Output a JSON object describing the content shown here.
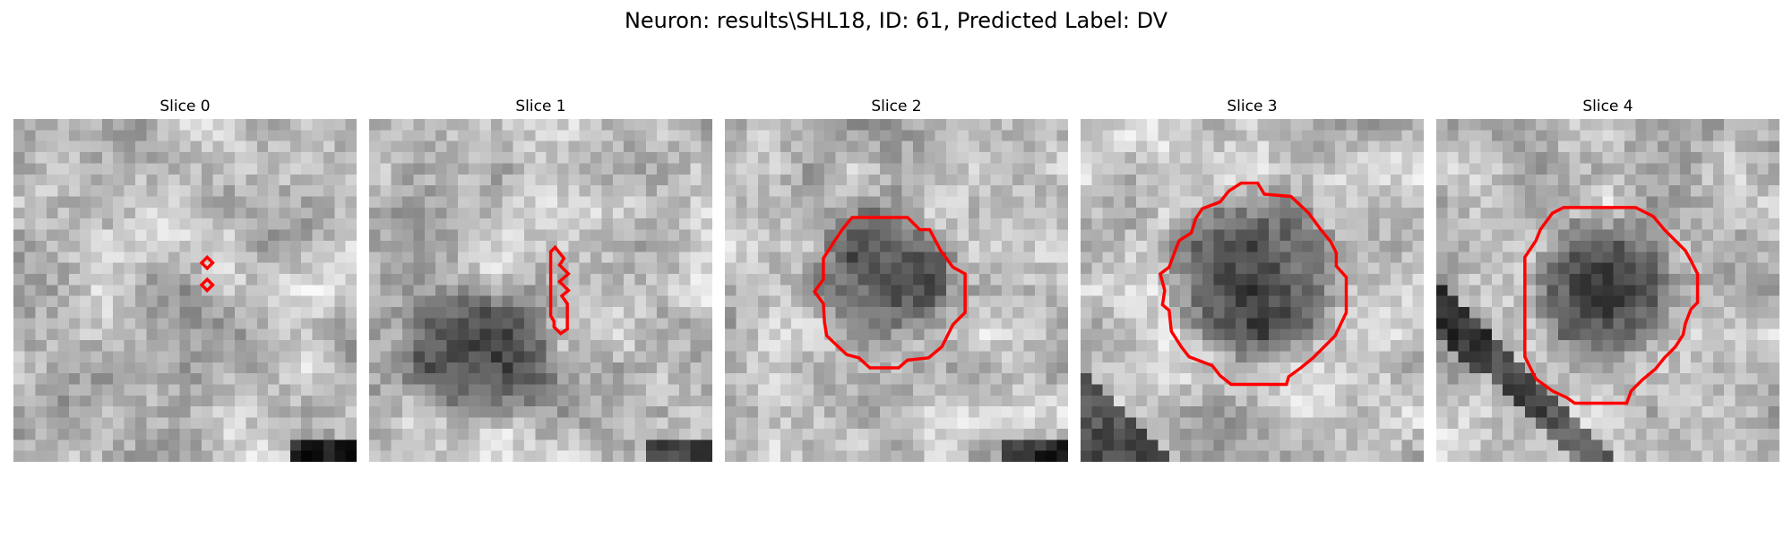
{
  "figure": {
    "title": "Neuron: results\\SHL18, ID: 61, Predicted Label: DV",
    "contour_color": "#ff0000"
  },
  "panels": [
    {
      "title": "Slice 0",
      "seed": 11,
      "blob": {
        "cx": 16.5,
        "cy": 19,
        "r": 8,
        "strength": 25
      },
      "dark_corner": "bottom-right"
    },
    {
      "title": "Slice 1",
      "seed": 23,
      "blob": {
        "cx": 10,
        "cy": 21,
        "r": 7.5,
        "strength": 110
      },
      "dark_corner": "bottom-right"
    },
    {
      "title": "Slice 2",
      "seed": 37,
      "blob": {
        "cx": 14,
        "cy": 14,
        "r": 7,
        "strength": 100
      },
      "dark_corner": "bottom-right"
    },
    {
      "title": "Slice 3",
      "seed": 41,
      "blob": {
        "cx": 15.5,
        "cy": 14,
        "r": 8.5,
        "strength": 110
      },
      "dark_corner": "bottom-left"
    },
    {
      "title": "Slice 4",
      "seed": 53,
      "blob": {
        "cx": 15,
        "cy": 15,
        "r": 7,
        "strength": 100
      },
      "dark_corner": "diagonal"
    }
  ]
}
